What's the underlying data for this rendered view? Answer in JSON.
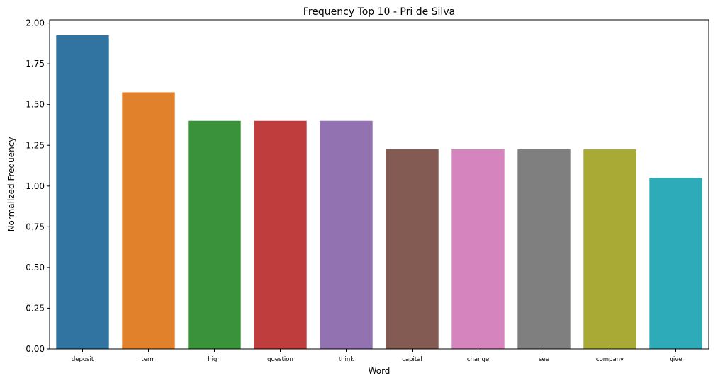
{
  "chart_data": {
    "type": "bar",
    "title": "Frequency Top 10 - Pri de Silva",
    "xlabel": "Word",
    "ylabel": "Normalized Frequency",
    "categories": [
      "deposit",
      "term",
      "high",
      "question",
      "think",
      "capital",
      "change",
      "see",
      "company",
      "give"
    ],
    "values": [
      1.925,
      1.575,
      1.4,
      1.4,
      1.4,
      1.225,
      1.225,
      1.225,
      1.225,
      1.05
    ],
    "colors": [
      "#3274a1",
      "#e1812c",
      "#3a923a",
      "#c03d3e",
      "#9372b2",
      "#845b53",
      "#d684bd",
      "#7f7f7f",
      "#a9aa35",
      "#2eabb8"
    ],
    "ylim": [
      0,
      2.02
    ],
    "yticks": [
      0.0,
      0.25,
      0.5,
      0.75,
      1.0,
      1.25,
      1.5,
      1.75,
      2.0
    ],
    "ytick_labels": [
      "0.00",
      "0.25",
      "0.50",
      "0.75",
      "1.00",
      "1.25",
      "1.50",
      "1.75",
      "2.00"
    ],
    "grid": false,
    "legend": "none"
  }
}
